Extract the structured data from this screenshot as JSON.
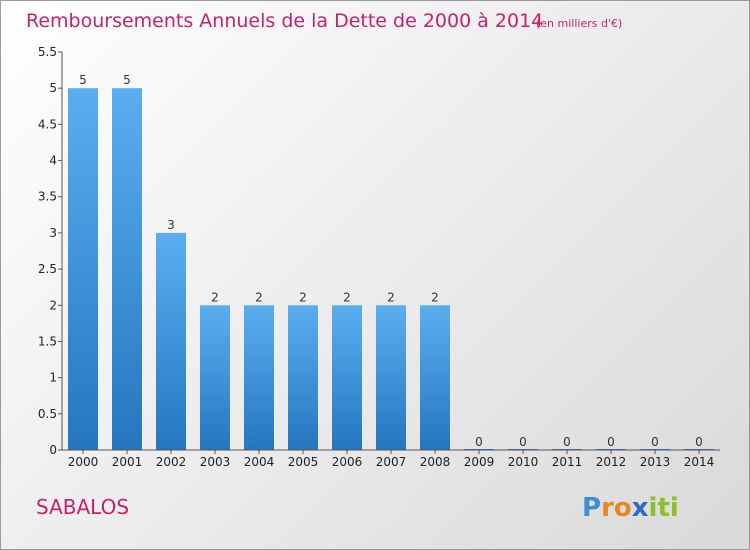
{
  "chart_data": {
    "type": "bar",
    "title": "Remboursements Annuels de la Dette de 2000 à 2014",
    "subtitle": "(en milliers d'€)",
    "categories": [
      "2000",
      "2001",
      "2002",
      "2003",
      "2004",
      "2005",
      "2006",
      "2007",
      "2008",
      "2009",
      "2010",
      "2011",
      "2012",
      "2013",
      "2014"
    ],
    "values": [
      5,
      5,
      3,
      2,
      2,
      2,
      2,
      2,
      2,
      0,
      0,
      0,
      0,
      0,
      0
    ],
    "y_ticks": [
      "0",
      "0.5",
      "1",
      "1.5",
      "2",
      "2.5",
      "3",
      "3.5",
      "4",
      "4.5",
      "5",
      "5.5"
    ],
    "ylim": [
      0,
      5.5
    ],
    "xlabel": "",
    "ylabel": "",
    "bar_color": "#3d8fd9"
  },
  "commune": "SABALOS",
  "logo": {
    "text": "Proxiti",
    "letters": [
      "P",
      "r",
      "o",
      "x",
      "i",
      "t",
      "i"
    ],
    "colors": [
      "#3b8fd6",
      "#e38a1e",
      "#e38a1e",
      "#2b6cc4",
      "#8dbf2a",
      "#8dbf2a",
      "#8dbf2a"
    ]
  }
}
